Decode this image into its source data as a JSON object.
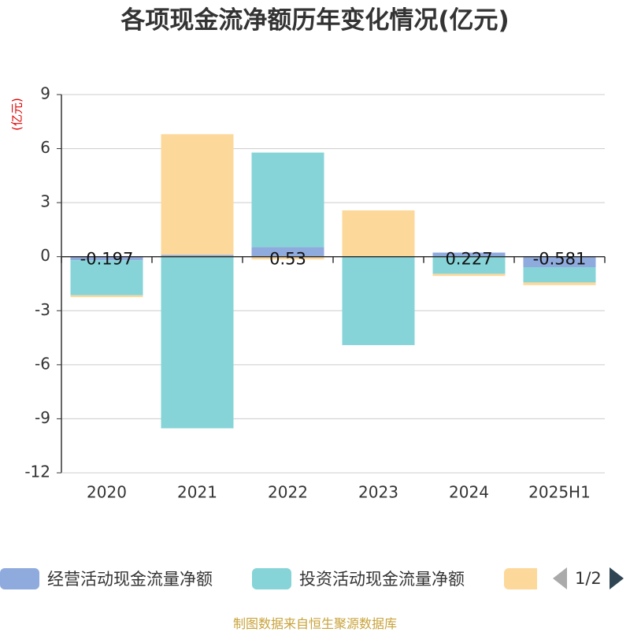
{
  "chart_data": {
    "type": "bar",
    "stacked": true,
    "title": "各项现金流净额历年变化情况(亿元)",
    "ylabel": "(亿元)",
    "categories": [
      "2020",
      "2021",
      "2022",
      "2023",
      "2024",
      "2025H1"
    ],
    "ylim": [
      -12,
      9
    ],
    "yticks": [
      9,
      6,
      3,
      0,
      -3,
      -6,
      -9,
      -12
    ],
    "grid": true,
    "legend_position": "bottom",
    "series": [
      {
        "name": "经营活动现金流量净额",
        "color": "#8faadc",
        "values": [
          -0.197,
          0.1,
          0.53,
          0.01,
          0.227,
          -0.581
        ],
        "labels": [
          "-0.197",
          "",
          "0.53",
          "",
          "0.227",
          "-0.581"
        ]
      },
      {
        "name": "投资活动现金流量净额",
        "color": "#86d4d8",
        "values": [
          -1.95,
          -9.53,
          5.25,
          -4.91,
          -0.95,
          -0.85
        ],
        "labels": [
          "",
          "",
          "",
          "",
          "",
          ""
        ]
      },
      {
        "name": "",
        "color": "#fdd89b",
        "values": [
          -0.1,
          6.7,
          -0.15,
          2.56,
          -0.12,
          -0.15
        ],
        "labels": [
          "",
          "",
          "",
          "",
          "",
          ""
        ]
      }
    ]
  },
  "pager": {
    "text": "1/2"
  },
  "footer": "制图数据来自恒生聚源数据库"
}
